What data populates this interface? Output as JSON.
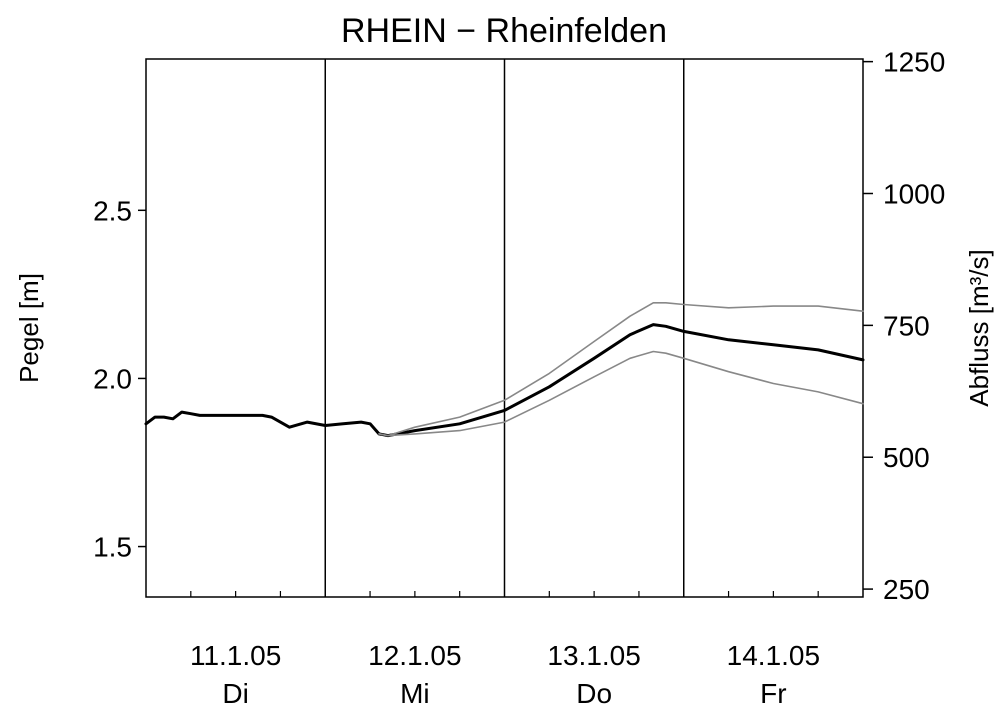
{
  "chart_data": {
    "type": "line",
    "title": "RHEIN − Rheinfelden",
    "ylabel": "Pegel [m]",
    "y2label": "Abfluss [m³/s]",
    "ylim": [
      1.35,
      2.95
    ],
    "yticks": [
      1.5,
      2.0,
      2.5
    ],
    "ytick_labels": [
      "1.5",
      "2.0",
      "2.5"
    ],
    "y2lim": [
      235,
      1255
    ],
    "y2ticks": [
      250,
      500,
      750,
      1000,
      1250
    ],
    "y2tick_labels": [
      "250",
      "500",
      "750",
      "1000",
      "1250"
    ],
    "xlim": [
      0,
      4
    ],
    "day_boundaries": [
      1,
      2,
      3
    ],
    "date_labels": [
      {
        "x": 0.5,
        "text": "11.1.05"
      },
      {
        "x": 1.5,
        "text": "12.1.05"
      },
      {
        "x": 2.5,
        "text": "13.1.05"
      },
      {
        "x": 3.5,
        "text": "14.1.05"
      }
    ],
    "day_labels": [
      {
        "x": 0.5,
        "text": "Di"
      },
      {
        "x": 1.5,
        "text": "Mi"
      },
      {
        "x": 2.5,
        "text": "Do"
      },
      {
        "x": 3.5,
        "text": "Fr"
      }
    ],
    "grid": false,
    "series": [
      {
        "color": "#000000",
        "x": [
          0,
          0.05,
          0.1,
          0.15,
          0.2,
          0.25,
          0.3,
          0.35,
          0.5,
          0.65,
          0.7,
          0.8,
          0.9,
          1.0,
          1.1,
          1.2,
          1.25,
          1.3,
          1.35,
          1.5,
          1.75,
          2.0,
          2.25,
          2.5,
          2.7,
          2.83,
          2.9,
          3.0,
          3.25,
          3.5,
          3.75,
          4.0
        ],
        "values": [
          1.865,
          1.885,
          1.885,
          1.88,
          1.9,
          1.895,
          1.89,
          1.89,
          1.89,
          1.89,
          1.885,
          1.855,
          1.87,
          1.86,
          1.865,
          1.87,
          1.865,
          1.835,
          1.83,
          1.845,
          1.865,
          1.905,
          1.975,
          2.06,
          2.13,
          2.16,
          2.155,
          2.14,
          2.115,
          2.1,
          2.085,
          2.055
        ]
      },
      {
        "color": "#888888",
        "x": [
          1.3,
          1.35,
          1.5,
          1.75,
          2.0,
          2.25,
          2.5,
          2.7,
          2.83,
          2.9,
          3.0,
          3.25,
          3.5,
          3.75,
          4.0
        ],
        "values": [
          1.835,
          1.83,
          1.855,
          1.885,
          1.935,
          2.015,
          2.11,
          2.185,
          2.225,
          2.225,
          2.22,
          2.21,
          2.215,
          2.215,
          2.2
        ]
      },
      {
        "color": "#888888",
        "x": [
          1.3,
          1.35,
          1.5,
          1.75,
          2.0,
          2.25,
          2.5,
          2.7,
          2.83,
          2.9,
          3.0,
          3.25,
          3.5,
          3.75,
          4.0
        ],
        "values": [
          1.835,
          1.83,
          1.835,
          1.845,
          1.87,
          1.935,
          2.005,
          2.06,
          2.08,
          2.075,
          2.06,
          2.02,
          1.985,
          1.96,
          1.925
        ]
      }
    ]
  }
}
